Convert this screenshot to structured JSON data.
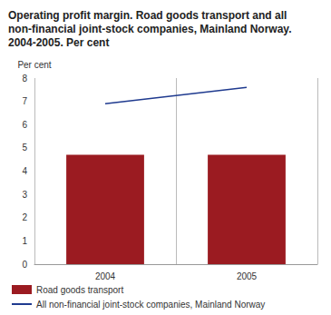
{
  "chart_data": {
    "type": "bar",
    "title": "Operating profit margin. Road goods transport and all non-financial joint-stock companies, Mainland Norway. 2004-2005. Per cent",
    "y_label": "Per cent",
    "categories": [
      "2004",
      "2005"
    ],
    "series": [
      {
        "name": "Road goods transport",
        "type": "bar",
        "color": "#9b1b21",
        "values": [
          4.7,
          4.7
        ]
      },
      {
        "name": "All non-financial joint-stock companies, Mainland Norway",
        "type": "line",
        "color": "#1f3a8f",
        "values": [
          6.9,
          7.6
        ]
      }
    ],
    "ylim": [
      0,
      8
    ],
    "yticks": [
      0,
      1,
      2,
      3,
      4,
      5,
      6,
      7,
      8
    ],
    "grid": false,
    "legend": "bottom"
  }
}
